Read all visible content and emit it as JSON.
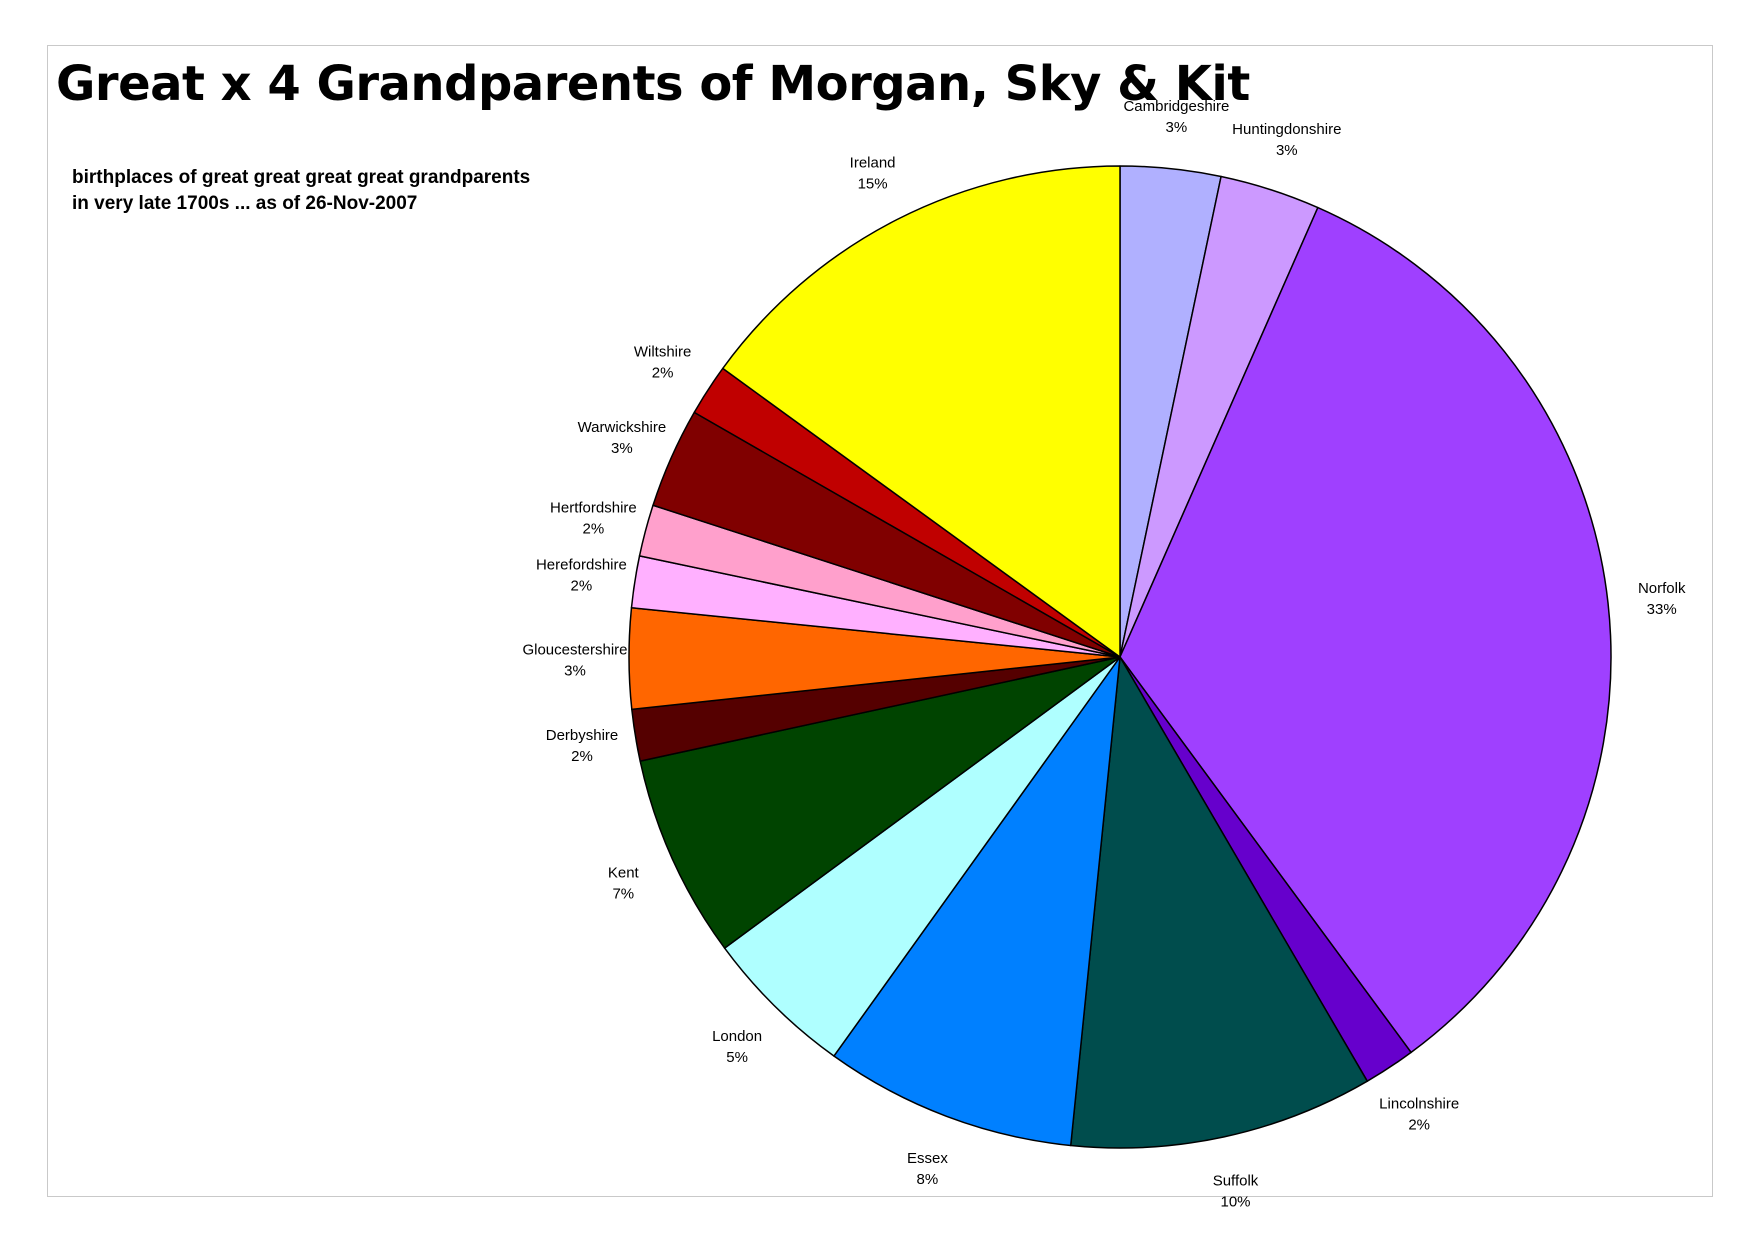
{
  "title": "Great x 4 Grandparents of Morgan, Sky & Kit",
  "subtitle_lines": [
    "birthplaces of great great great great grandparents",
    "in very late 1700s ... as of 26-Nov-2007"
  ],
  "chart_data": {
    "type": "pie",
    "title": "Great x 4 Grandparents of Morgan, Sky & Kit",
    "subtitle": "birthplaces of great great great great grandparents in very late 1700s ... as of 26-Nov-2007",
    "start_angle_deg": 0,
    "direction": "clockwise",
    "legend": "none",
    "slices": [
      {
        "label": "Cambridgeshire",
        "percent": 3,
        "value": 3.3,
        "color": "#B0B0FF",
        "pct_label": "3%"
      },
      {
        "label": "Huntingdonshire",
        "percent": 3,
        "value": 3.3,
        "color": "#CC99FF",
        "pct_label": "3%"
      },
      {
        "label": "Norfolk",
        "percent": 33,
        "value": 33.3,
        "color": "#9F40FF",
        "pct_label": "33%"
      },
      {
        "label": "Lincolnshire",
        "percent": 2,
        "value": 1.7,
        "color": "#6600CC",
        "pct_label": "2%"
      },
      {
        "label": "Suffolk",
        "percent": 10,
        "value": 10.0,
        "color": "#004D4D",
        "pct_label": "10%"
      },
      {
        "label": "Essex",
        "percent": 8,
        "value": 8.3,
        "color": "#0080FF",
        "pct_label": "8%"
      },
      {
        "label": "London",
        "percent": 5,
        "value": 5.0,
        "color": "#AFFFFF",
        "pct_label": "5%"
      },
      {
        "label": "Kent",
        "percent": 7,
        "value": 6.7,
        "color": "#004400",
        "pct_label": "7%"
      },
      {
        "label": "Derbyshire",
        "percent": 2,
        "value": 1.7,
        "color": "#550000",
        "pct_label": "2%"
      },
      {
        "label": "Gloucestershire",
        "percent": 3,
        "value": 3.3,
        "color": "#FF6600",
        "pct_label": "3%"
      },
      {
        "label": "Herefordshire",
        "percent": 2,
        "value": 1.7,
        "color": "#FFB0FF",
        "pct_label": "2%"
      },
      {
        "label": "Hertfordshire",
        "percent": 2,
        "value": 1.7,
        "color": "#FFA0CC",
        "pct_label": "2%"
      },
      {
        "label": "Warwickshire",
        "percent": 3,
        "value": 3.3,
        "color": "#800000",
        "pct_label": "3%"
      },
      {
        "label": "Wiltshire",
        "percent": 2,
        "value": 1.7,
        "color": "#C00000",
        "pct_label": "2%"
      },
      {
        "label": "Ireland",
        "percent": 15,
        "value": 15.0,
        "color": "#FFFF00",
        "pct_label": "15%"
      }
    ]
  }
}
